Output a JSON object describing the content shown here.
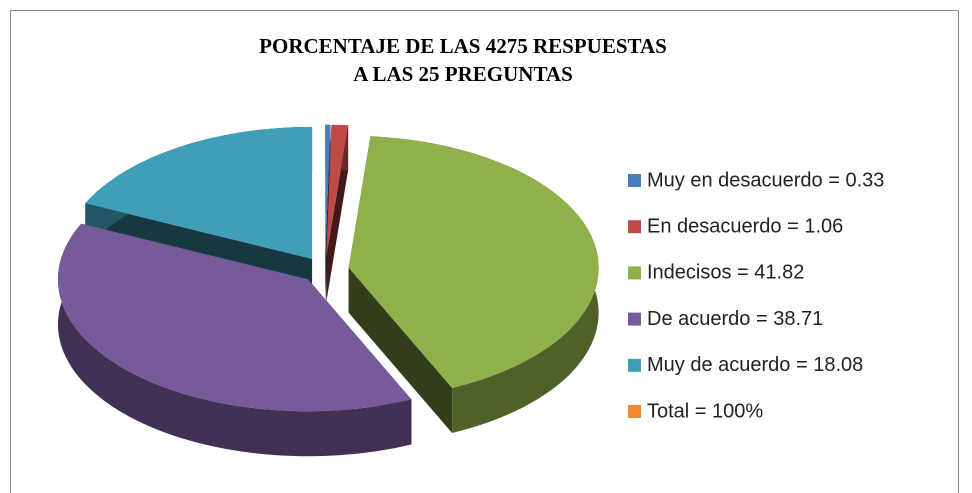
{
  "chart_data": {
    "type": "pie3d",
    "title": "PORCENTAJE DE LAS 4275 RESPUESTAS",
    "subtitle": "A LAS 25 PREGUNTAS",
    "categories": [
      "Muy en desacuerdo = 0.33",
      "En desacuerdo = 1.06",
      "Indecisos = 41.82",
      "De acuerdo = 38.71",
      "Muy de acuerdo = 18.08"
    ],
    "values": [
      0.33,
      1.06,
      41.82,
      38.71,
      18.08
    ],
    "colors": [
      "#4a7ebb",
      "#be4b48",
      "#8fb04b",
      "#775a9a",
      "#3f9fb8"
    ],
    "total": {
      "label": "Total = 100%",
      "value": 100,
      "color": "#f08a2f"
    },
    "legend": "right"
  }
}
